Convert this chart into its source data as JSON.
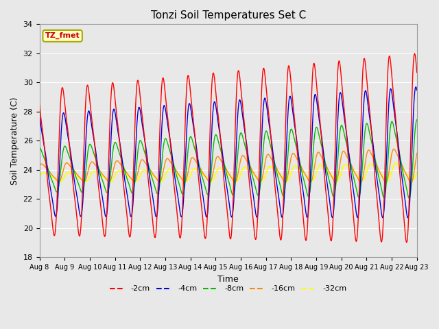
{
  "title": "Tonzi Soil Temperatures Set C",
  "xlabel": "Time",
  "ylabel": "Soil Temperature (C)",
  "ylim": [
    18,
    34
  ],
  "yticks": [
    18,
    20,
    22,
    24,
    26,
    28,
    30,
    32,
    34
  ],
  "x_labels": [
    "Aug 8",
    "Aug 9",
    "Aug 10",
    "Aug 11",
    "Aug 12",
    "Aug 13",
    "Aug 14",
    "Aug 15",
    "Aug 16",
    "Aug 17",
    "Aug 18",
    "Aug 19",
    "Aug 20",
    "Aug 21",
    "Aug 22",
    "Aug 23"
  ],
  "series": {
    "-2cm": {
      "color": "#ff0000",
      "lw": 1.0
    },
    "-4cm": {
      "color": "#0000dd",
      "lw": 1.0
    },
    "-8cm": {
      "color": "#00bb00",
      "lw": 1.0
    },
    "-16cm": {
      "color": "#ff8800",
      "lw": 1.0
    },
    "-32cm": {
      "color": "#ffff00",
      "lw": 1.2
    }
  },
  "annotation_text": "TZ_fmet",
  "annotation_color": "#cc0000",
  "annotation_bg": "#ffffcc",
  "annotation_border": "#aaaa00",
  "bg_color": "#e8e8e8"
}
